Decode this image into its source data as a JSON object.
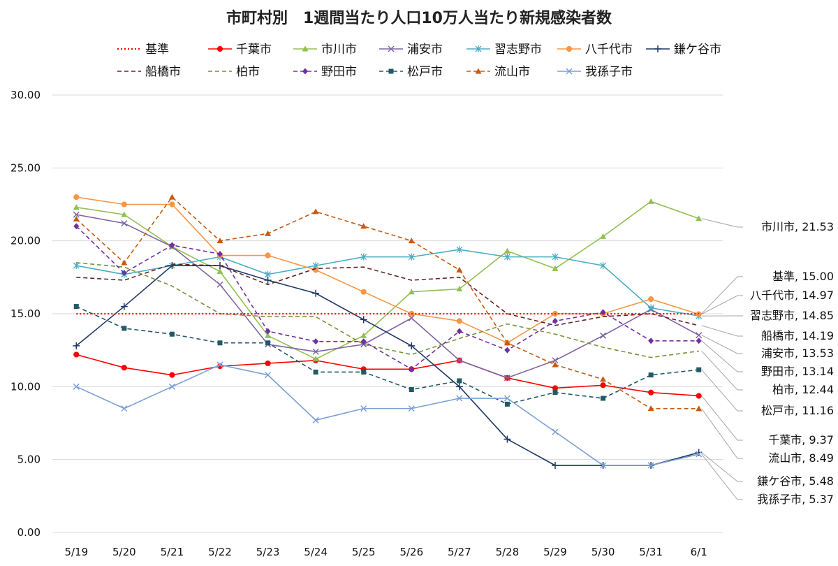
{
  "chart_data": {
    "type": "line",
    "title": "市町村別　1週間当たり人口10万人当たり新規感染者数",
    "xlabel": "",
    "ylabel": "",
    "ylim": [
      0,
      30
    ],
    "yticks": [
      "0.00",
      "5.00",
      "10.00",
      "15.00",
      "20.00",
      "25.00",
      "30.00"
    ],
    "grid": true,
    "legend_position": "top",
    "categories": [
      "5/19",
      "5/20",
      "5/21",
      "5/22",
      "5/23",
      "5/24",
      "5/25",
      "5/26",
      "5/27",
      "5/28",
      "5/29",
      "5/30",
      "5/31",
      "6/1"
    ],
    "series": [
      {
        "name": "基準",
        "color": "#ff0000",
        "style": "dotted",
        "marker": "none",
        "values": [
          15,
          15,
          15,
          15,
          15,
          15,
          15,
          15,
          15,
          15,
          15,
          15,
          15,
          15
        ]
      },
      {
        "name": "千葉市",
        "color": "#ff0000",
        "style": "solid",
        "marker": "circle",
        "values": [
          12.2,
          11.3,
          10.8,
          11.4,
          11.6,
          11.8,
          11.2,
          11.2,
          11.8,
          10.6,
          9.9,
          10.1,
          9.6,
          9.37
        ]
      },
      {
        "name": "市川市",
        "color": "#92c050",
        "style": "solid",
        "marker": "triangle",
        "values": [
          22.3,
          21.8,
          19.6,
          17.9,
          13.5,
          11.9,
          13.5,
          16.5,
          16.7,
          19.3,
          18.1,
          20.3,
          22.7,
          21.53
        ]
      },
      {
        "name": "浦安市",
        "color": "#8064a2",
        "style": "solid",
        "marker": "x",
        "values": [
          21.8,
          21.2,
          19.6,
          17.0,
          12.9,
          12.4,
          12.9,
          14.7,
          11.8,
          10.6,
          11.8,
          13.5,
          15.3,
          13.53
        ]
      },
      {
        "name": "習志野市",
        "color": "#4bacc6",
        "style": "solid",
        "marker": "asterisk",
        "values": [
          18.3,
          17.7,
          18.3,
          18.9,
          17.7,
          18.3,
          18.9,
          18.9,
          19.4,
          18.9,
          18.9,
          18.3,
          15.4,
          14.85
        ]
      },
      {
        "name": "八千代市",
        "color": "#f79646",
        "style": "solid",
        "marker": "circle",
        "values": [
          23.0,
          22.5,
          22.5,
          19.0,
          19.0,
          18.0,
          16.5,
          15.0,
          14.5,
          13.0,
          15.0,
          15.0,
          16.0,
          14.97
        ]
      },
      {
        "name": "鎌ケ谷市",
        "color": "#1f3864",
        "style": "solid",
        "marker": "plus",
        "values": [
          12.8,
          15.5,
          18.3,
          18.3,
          17.3,
          16.4,
          14.6,
          12.8,
          10.0,
          6.4,
          4.6,
          4.6,
          4.6,
          5.48
        ]
      },
      {
        "name": "船橋市",
        "color": "#632523",
        "style": "dashed",
        "marker": "none",
        "values": [
          17.5,
          17.3,
          18.4,
          18.3,
          17.0,
          18.1,
          18.2,
          17.3,
          17.5,
          15.0,
          14.2,
          14.8,
          15.0,
          14.19
        ]
      },
      {
        "name": "柏市",
        "color": "#76923c",
        "style": "dashed",
        "marker": "none",
        "values": [
          18.5,
          18.2,
          16.9,
          15.0,
          14.8,
          14.8,
          12.9,
          12.2,
          13.3,
          14.3,
          13.6,
          12.7,
          12.0,
          12.44
        ]
      },
      {
        "name": "野田市",
        "color": "#7030a0",
        "style": "dashed",
        "marker": "diamond",
        "values": [
          21.0,
          17.8,
          19.7,
          19.1,
          13.8,
          13.1,
          13.1,
          11.2,
          13.8,
          12.5,
          14.5,
          15.1,
          13.14,
          13.14
        ]
      },
      {
        "name": "松戸市",
        "color": "#215968",
        "style": "dashed",
        "marker": "square",
        "values": [
          15.5,
          14.0,
          13.6,
          13.0,
          13.0,
          11.0,
          11.0,
          9.8,
          10.4,
          8.8,
          9.6,
          9.2,
          10.8,
          11.16
        ]
      },
      {
        "name": "流山市",
        "color": "#c55a11",
        "style": "dashed",
        "marker": "triangle",
        "values": [
          21.5,
          18.5,
          23.0,
          20.0,
          20.5,
          22.0,
          21.0,
          20.0,
          18.0,
          13.0,
          11.5,
          10.5,
          8.5,
          8.49
        ]
      },
      {
        "name": "我孫子市",
        "color": "#7aa0d4",
        "style": "solid",
        "marker": "x",
        "values": [
          10.0,
          8.5,
          10.0,
          11.5,
          10.8,
          7.7,
          8.5,
          8.5,
          9.2,
          9.2,
          6.9,
          4.6,
          4.6,
          5.37
        ]
      }
    ],
    "end_labels": [
      {
        "series": "市川市",
        "text": "市川市, 21.53"
      },
      {
        "series": "基準",
        "text": "基準, 15.00"
      },
      {
        "series": "八千代市",
        "text": "八千代市, 14.97"
      },
      {
        "series": "習志野市",
        "text": "習志野市, 14.85"
      },
      {
        "series": "船橋市",
        "text": "船橋市, 14.19"
      },
      {
        "series": "浦安市",
        "text": "浦安市, 13.53"
      },
      {
        "series": "野田市",
        "text": "野田市, 13.14"
      },
      {
        "series": "柏市",
        "text": "柏市, 12.44"
      },
      {
        "series": "松戸市",
        "text": "松戸市, 11.16"
      },
      {
        "series": "千葉市",
        "text": "千葉市, 9.37"
      },
      {
        "series": "流山市",
        "text": "流山市, 8.49"
      },
      {
        "series": "鎌ケ谷市",
        "text": "鎌ケ谷市, 5.48"
      },
      {
        "series": "我孫子市",
        "text": "我孫子市, 5.37"
      }
    ]
  }
}
